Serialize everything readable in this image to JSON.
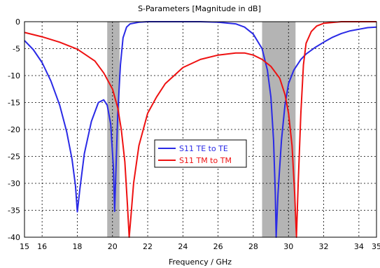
{
  "chart_data": {
    "type": "line",
    "title": "S-Parameters [Magnitude in dB]",
    "xlabel": "Frequency / GHz",
    "ylabel": "",
    "xlim": [
      15,
      35
    ],
    "ylim": [
      -40,
      0
    ],
    "xticks": [
      15,
      16,
      18,
      20,
      22,
      24,
      26,
      28,
      30,
      32,
      34,
      35
    ],
    "yticks": [
      0,
      -5,
      -10,
      -15,
      -20,
      -25,
      -30,
      -35,
      -40
    ],
    "grid": true,
    "legend_position": "center",
    "highlight_bands": [
      {
        "x0": 19.7,
        "x1": 20.4
      },
      {
        "x0": 28.5,
        "x1": 30.4
      }
    ],
    "series": [
      {
        "name": "S11 TE to TE",
        "color": "#2a2ae6",
        "points": [
          [
            15,
            -3.5
          ],
          [
            15.5,
            -5.2
          ],
          [
            16,
            -7.6
          ],
          [
            16.5,
            -11
          ],
          [
            17,
            -15.5
          ],
          [
            17.4,
            -20.5
          ],
          [
            17.7,
            -25.5
          ],
          [
            17.9,
            -30.5
          ],
          [
            18,
            -35.3
          ],
          [
            18.15,
            -31
          ],
          [
            18.4,
            -24.5
          ],
          [
            18.8,
            -18.5
          ],
          [
            19.2,
            -15
          ],
          [
            19.5,
            -14.5
          ],
          [
            19.7,
            -15.5
          ],
          [
            19.9,
            -19
          ],
          [
            20.05,
            -27
          ],
          [
            20.12,
            -35.2
          ],
          [
            20.2,
            -27
          ],
          [
            20.3,
            -17
          ],
          [
            20.45,
            -8
          ],
          [
            20.6,
            -3
          ],
          [
            20.8,
            -1
          ],
          [
            21,
            -0.4
          ],
          [
            21.5,
            -0.1
          ],
          [
            22,
            0
          ],
          [
            25,
            0
          ],
          [
            26,
            -0.1
          ],
          [
            27,
            -0.4
          ],
          [
            27.5,
            -1
          ],
          [
            28,
            -2.3
          ],
          [
            28.5,
            -5
          ],
          [
            28.8,
            -9
          ],
          [
            29,
            -14
          ],
          [
            29.15,
            -22
          ],
          [
            29.25,
            -32
          ],
          [
            29.3,
            -40
          ],
          [
            29.4,
            -32
          ],
          [
            29.6,
            -22
          ],
          [
            29.8,
            -15.5
          ],
          [
            30,
            -11.5
          ],
          [
            30.3,
            -9
          ],
          [
            30.7,
            -7
          ],
          [
            31,
            -6
          ],
          [
            31.5,
            -4.8
          ],
          [
            32,
            -3.8
          ],
          [
            32.5,
            -2.9
          ],
          [
            33,
            -2.2
          ],
          [
            33.5,
            -1.7
          ],
          [
            34,
            -1.4
          ],
          [
            34.5,
            -1.1
          ],
          [
            35,
            -1
          ]
        ]
      },
      {
        "name": "S11 TM to TM",
        "color": "#ee1111",
        "points": [
          [
            15,
            -2
          ],
          [
            16,
            -2.8
          ],
          [
            17,
            -3.8
          ],
          [
            18,
            -5.1
          ],
          [
            19,
            -7.3
          ],
          [
            19.5,
            -9.5
          ],
          [
            20,
            -12.5
          ],
          [
            20.3,
            -16
          ],
          [
            20.5,
            -20
          ],
          [
            20.7,
            -26
          ],
          [
            20.85,
            -34
          ],
          [
            20.95,
            -40
          ],
          [
            21.05,
            -36
          ],
          [
            21.2,
            -30
          ],
          [
            21.5,
            -23
          ],
          [
            22,
            -17
          ],
          [
            22.5,
            -14
          ],
          [
            23,
            -11.5
          ],
          [
            24,
            -8.5
          ],
          [
            25,
            -7
          ],
          [
            26,
            -6.2
          ],
          [
            27,
            -5.8
          ],
          [
            27.5,
            -5.8
          ],
          [
            28,
            -6.2
          ],
          [
            28.5,
            -7
          ],
          [
            29,
            -8.3
          ],
          [
            29.5,
            -10.5
          ],
          [
            29.8,
            -13.5
          ],
          [
            30,
            -17
          ],
          [
            30.2,
            -23
          ],
          [
            30.35,
            -32
          ],
          [
            30.45,
            -40
          ],
          [
            30.55,
            -30
          ],
          [
            30.7,
            -17
          ],
          [
            30.85,
            -8
          ],
          [
            31,
            -4
          ],
          [
            31.3,
            -1.8
          ],
          [
            31.6,
            -0.8
          ],
          [
            32,
            -0.3
          ],
          [
            33,
            0
          ],
          [
            35,
            0
          ]
        ]
      }
    ]
  }
}
